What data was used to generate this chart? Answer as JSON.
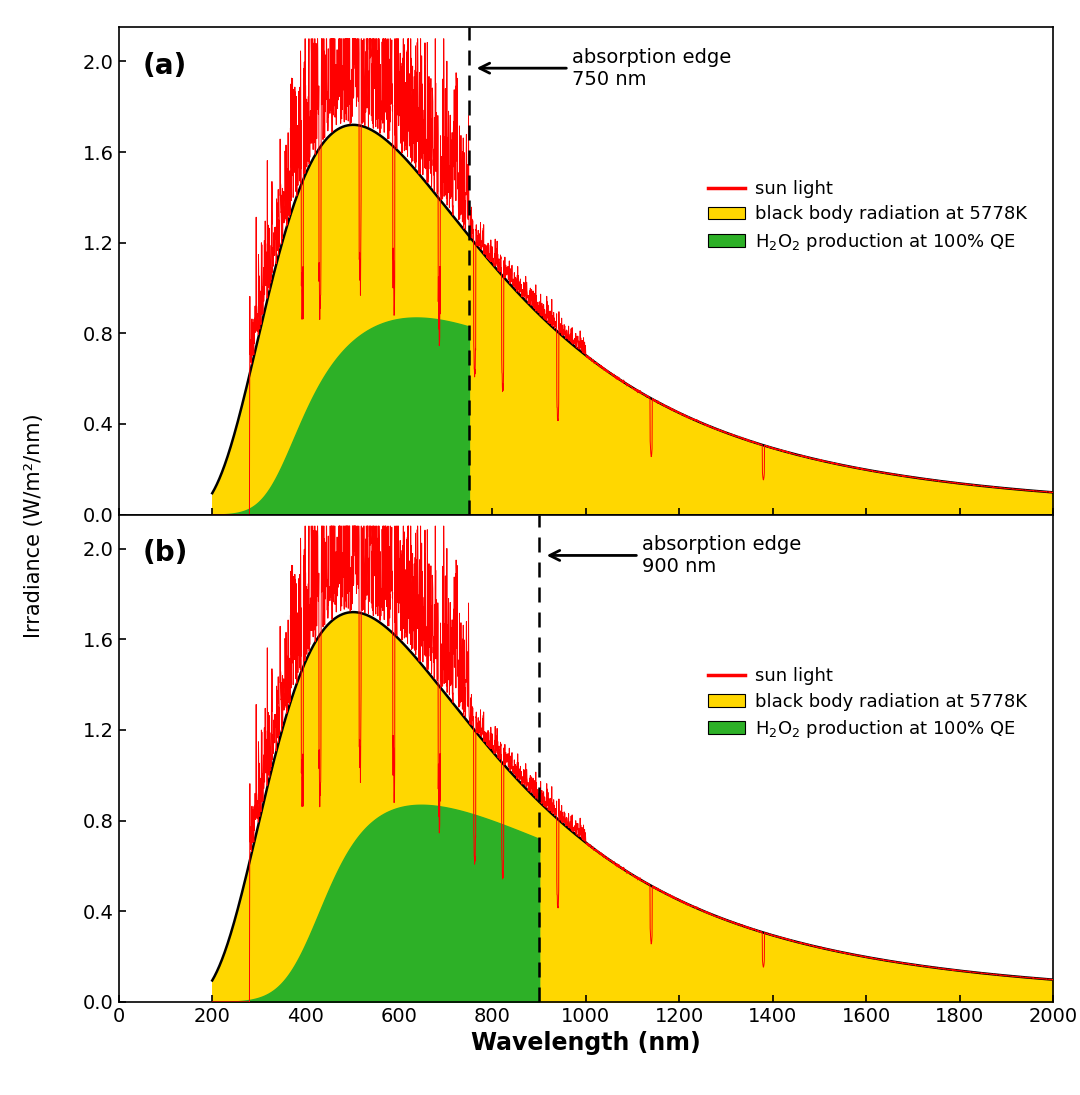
{
  "title_a": "(a)",
  "title_b": "(b)",
  "absorption_edge_a": 750,
  "absorption_edge_b": 900,
  "annotation_a": "absorption edge\n750 nm",
  "annotation_b": "absorption edge\n900 nm",
  "xlim": [
    0,
    2000
  ],
  "ylim": [
    0.0,
    2.15
  ],
  "yticks": [
    0.0,
    0.4,
    0.8,
    1.2,
    1.6,
    2.0
  ],
  "xticks": [
    0,
    200,
    400,
    600,
    800,
    1000,
    1200,
    1400,
    1600,
    1800,
    2000
  ],
  "xlabel": "Wavelength (nm)",
  "ylabel": "Irradiance (W/m²/nm)",
  "sun_color": "#FF0000",
  "blackbody_color": "#FFD700",
  "h2o2_color": "#2DB027",
  "blackbody_edge_color": "#000000",
  "T_blackbody": 5778,
  "legend_line_label": "sun light",
  "legend_yellow_label": "black body radiation at 5778K",
  "legend_green_label": "H₂O₂ production at 100% QE",
  "background_color": "#FFFFFF",
  "noise_seed": 42,
  "bb_peak_scale": 1.72,
  "sun_noise_scale_vis": 0.08,
  "sun_noise_scale_nir": 0.03
}
